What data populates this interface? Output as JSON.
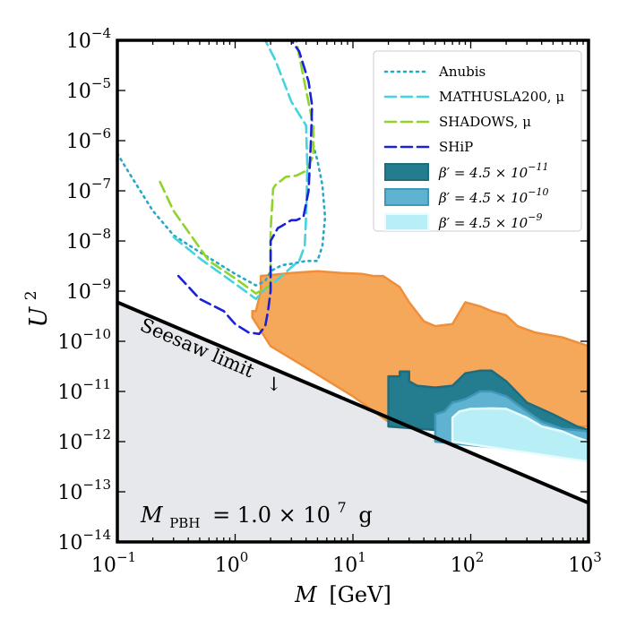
{
  "chart_data": {
    "type": "area",
    "xlabel": "M [GeV]",
    "xlabel_parts": {
      "symbol": "M",
      "unit": "[GeV]"
    },
    "ylabel": "U^2",
    "ylabel_parts": {
      "base": "U",
      "exp": "2"
    },
    "xscale": "log",
    "yscale": "log",
    "xlim": [
      0.1,
      1000
    ],
    "ylim": [
      1e-14,
      0.0001
    ],
    "x_ticks": [
      {
        "value": 0.1,
        "base": "10",
        "exp": "−1"
      },
      {
        "value": 1,
        "base": "10",
        "exp": "0"
      },
      {
        "value": 10,
        "base": "10",
        "exp": "1"
      },
      {
        "value": 100,
        "base": "10",
        "exp": "2"
      },
      {
        "value": 1000,
        "base": "10",
        "exp": "3"
      }
    ],
    "y_ticks": [
      {
        "value": 1e-14,
        "base": "10",
        "exp": "−14"
      },
      {
        "value": 1e-13,
        "base": "10",
        "exp": "−13"
      },
      {
        "value": 1e-12,
        "base": "10",
        "exp": "−12"
      },
      {
        "value": 1e-11,
        "base": "10",
        "exp": "−11"
      },
      {
        "value": 1e-10,
        "base": "10",
        "exp": "−10"
      },
      {
        "value": 1e-09,
        "base": "10",
        "exp": "−9"
      },
      {
        "value": 1e-08,
        "base": "10",
        "exp": "−8"
      },
      {
        "value": 1e-07,
        "base": "10",
        "exp": "−7"
      },
      {
        "value": 1e-06,
        "base": "10",
        "exp": "−6"
      },
      {
        "value": 1e-05,
        "base": "10",
        "exp": "−5"
      },
      {
        "value": 0.0001,
        "base": "10",
        "exp": "−4"
      }
    ],
    "legend_placement": "top-right",
    "grid": false,
    "annotations": {
      "seesaw": "Seesaw limit",
      "seesaw_arrow": "↓",
      "pbh_mass": {
        "lhs": "M",
        "sub": "PBH",
        "rhs": "= 1.0 × 10",
        "exp": "7",
        "unit": "g"
      }
    },
    "seesaw_line": {
      "x": [
        0.1,
        1000
      ],
      "y": [
        6e-10,
        6e-14
      ],
      "color": "#000000",
      "fill_below": "#e6e8ec"
    },
    "experiments": [
      {
        "name": "Anubis",
        "dash": "dotted",
        "color": "#29a8c4",
        "x": [
          0.1,
          0.13,
          0.2,
          0.3,
          0.5,
          1.0,
          1.5,
          1.8,
          2.0,
          2.5,
          3.0,
          4.0,
          5.0,
          5.5,
          5.8,
          5.5,
          5.0,
          4.5
        ],
        "y": [
          5.5e-07,
          2e-07,
          4e-08,
          1.3e-08,
          6e-09,
          2.2e-09,
          1.3e-09,
          1.6e-09,
          2.5e-09,
          3.3e-09,
          3.5e-09,
          4e-09,
          4e-09,
          8e-09,
          3e-08,
          1.3e-07,
          4e-07,
          1e-06
        ]
      },
      {
        "name": "MATHUSLA200, μ",
        "dash": "dashed",
        "color": "#45d3dd",
        "x": [
          0.3,
          0.5,
          1.0,
          1.5,
          1.8,
          2.0,
          2.5,
          3.0,
          3.5,
          3.9,
          4.0,
          4.1,
          4.0,
          3.0,
          2.2,
          1.8
        ],
        "y": [
          1.2e-08,
          4.5e-09,
          1.4e-09,
          7e-10,
          1.1e-09,
          1.3e-09,
          2e-09,
          3e-09,
          4e-09,
          8e-09,
          3e-08,
          3e-07,
          2e-06,
          6e-06,
          4e-05,
          0.0001
        ]
      },
      {
        "name": "SHADOWS, μ",
        "dash": "dashed",
        "color": "#8fd42a",
        "x": [
          0.23,
          0.3,
          0.6,
          1.0,
          1.5,
          2.0,
          2.0,
          2.1,
          2.2,
          2.7,
          3.3,
          4.0,
          4.6,
          4.6,
          4.0,
          3.3
        ],
        "y": [
          1.5e-07,
          4e-08,
          4e-09,
          1.8e-09,
          9e-10,
          1.3e-09,
          1.6e-08,
          1.1e-07,
          1.3e-07,
          1.9e-07,
          2e-07,
          2.5e-07,
          5e-07,
          2e-06,
          1e-05,
          0.0001
        ]
      },
      {
        "name": "SHiP",
        "dash": "dashed",
        "color": "#1a22d9",
        "x": [
          0.33,
          0.5,
          0.8,
          1.0,
          1.3,
          1.6,
          1.8,
          1.9,
          2.0,
          2.0,
          2.3,
          2.5,
          3.0,
          3.3,
          3.8,
          4.2,
          4.4,
          4.5,
          4.2,
          3.5,
          3.0
        ],
        "y": [
          2e-09,
          7e-10,
          4e-10,
          2.2e-10,
          1.5e-10,
          1.4e-10,
          2e-10,
          4e-10,
          1e-09,
          1e-08,
          1.8e-08,
          2e-08,
          2.6e-08,
          2.6e-08,
          3e-08,
          1e-07,
          1e-06,
          5e-06,
          1.5e-05,
          6e-05,
          0.0001
        ]
      }
    ],
    "regions": [
      {
        "name": "orange-bound",
        "legend": false,
        "fill": "#f6a85a",
        "edge": "#ef8f3a",
        "x": [
          1.4,
          1.4,
          1.5,
          1.65,
          1.65,
          3.0,
          5.0,
          8.0,
          12.0,
          15.0,
          18.0,
          20.0,
          25.0,
          30.0,
          40.0,
          50.0,
          70.0,
          90.0,
          120.0,
          150.0,
          200.0,
          250.0,
          350.0,
          600.0,
          1000.0,
          1000.0,
          30.0,
          20.0,
          10.0,
          4.0,
          2.0,
          1.4
        ],
        "y": [
          3e-10,
          4e-10,
          4e-10,
          1e-09,
          2e-09,
          2.3e-09,
          2.5e-09,
          2.3e-09,
          2.2e-09,
          2e-09,
          2e-09,
          1.7e-09,
          1.2e-09,
          6e-10,
          2.5e-10,
          2e-10,
          2.2e-10,
          6e-10,
          5e-10,
          4e-10,
          3.3e-10,
          2e-10,
          1.5e-10,
          1.2e-10,
          8e-11,
          2e-12,
          2e-12,
          2.5e-12,
          8e-12,
          3e-11,
          8e-11,
          3e-10
        ]
      },
      {
        "name": "β′ = 4.5 × 10⁻¹¹",
        "legend_base": "β′ = 4.5 × 10",
        "legend_exp": "−11",
        "fill": "#247d8f",
        "edge": "#1e6c7e",
        "x": [
          20.0,
          20.0,
          25.0,
          25.0,
          30.0,
          30.0,
          35.0,
          50.0,
          70.0,
          90.0,
          120.0,
          150.0,
          200.0,
          300.0,
          500.0,
          800.0,
          1000.0,
          1000.0,
          20.0
        ],
        "y": [
          2e-12,
          2e-11,
          2e-11,
          2.5e-11,
          2.5e-11,
          1.6e-11,
          1.3e-11,
          1.2e-11,
          1.3e-11,
          2.3e-11,
          2.6e-11,
          2.6e-11,
          1.6e-11,
          6e-12,
          3.5e-12,
          2e-12,
          1.7e-12,
          1e-12,
          2e-12
        ]
      },
      {
        "name": "β′ = 4.5 × 10⁻¹⁰",
        "legend_base": "β′ = 4.5 × 10",
        "legend_exp": "−10",
        "fill": "#5fb3d1",
        "edge": "#3f98ba",
        "x": [
          50.0,
          50.0,
          60.0,
          70.0,
          80.0,
          90.0,
          120.0,
          150.0,
          200.0,
          300.0,
          400.0,
          600.0,
          800.0,
          1000.0,
          1000.0,
          50.0
        ],
        "y": [
          1e-12,
          3.5e-12,
          4e-12,
          6e-12,
          6.5e-12,
          7e-12,
          1e-11,
          1e-11,
          8e-12,
          4e-12,
          2.5e-12,
          1.8e-12,
          1.7e-12,
          1.6e-12,
          5e-13,
          1e-12
        ]
      },
      {
        "name": "β′ = 4.5 × 10⁻⁹",
        "legend_base": "β′ = 4.5 × 10",
        "legend_exp": "−9",
        "fill": "#b8eef5",
        "edge": "#e6fbfd",
        "x": [
          70.0,
          70.0,
          80.0,
          100.0,
          150.0,
          200.0,
          300.0,
          400.0,
          600.0,
          800.0,
          1000.0,
          1000.0,
          70.0
        ],
        "y": [
          1e-12,
          3e-12,
          4e-12,
          4.5e-12,
          4.6e-12,
          4.5e-12,
          3e-12,
          2e-12,
          1.6e-12,
          1.2e-12,
          1e-12,
          4e-13,
          1e-12
        ]
      }
    ]
  }
}
